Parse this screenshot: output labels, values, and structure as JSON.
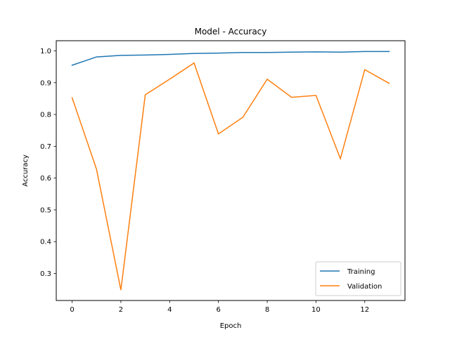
{
  "chart_data": {
    "type": "line",
    "title": "Model - Accuracy",
    "xlabel": "Epoch",
    "ylabel": "Accuracy",
    "x": [
      0,
      1,
      2,
      3,
      4,
      5,
      6,
      7,
      8,
      9,
      10,
      11,
      12,
      13
    ],
    "xlim": [
      -0.65,
      13.65
    ],
    "ylim": [
      0.215,
      1.032
    ],
    "xticks": [
      0,
      2,
      4,
      6,
      8,
      10,
      12
    ],
    "yticks": [
      0.3,
      0.4,
      0.5,
      0.6,
      0.7,
      0.8,
      0.9,
      1.0
    ],
    "grid": false,
    "legend_position": "lower-right",
    "series": [
      {
        "name": "Training",
        "color": "#1f77b4",
        "values": [
          0.955,
          0.981,
          0.986,
          0.987,
          0.989,
          0.992,
          0.993,
          0.995,
          0.995,
          0.996,
          0.997,
          0.996,
          0.998,
          0.998
        ]
      },
      {
        "name": "Validation",
        "color": "#ff7f0e",
        "values": [
          0.853,
          0.628,
          0.248,
          0.862,
          0.911,
          0.962,
          0.739,
          0.791,
          0.911,
          0.854,
          0.86,
          0.661,
          0.941,
          0.898
        ]
      }
    ]
  }
}
